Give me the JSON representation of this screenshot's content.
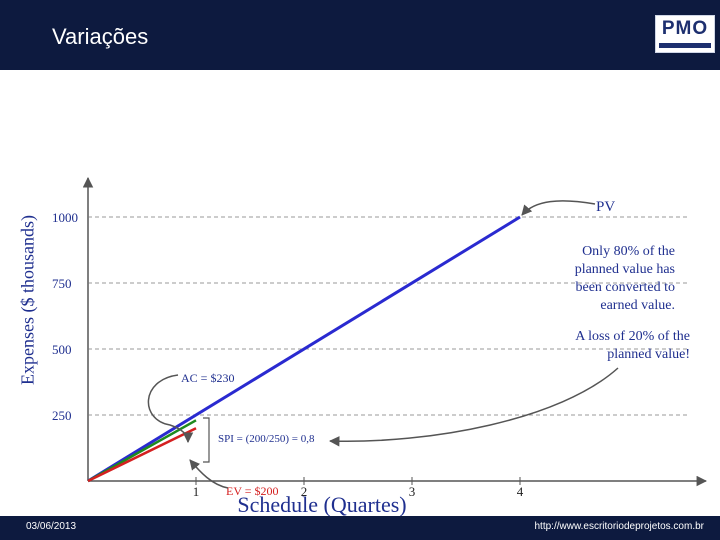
{
  "header": {
    "title": "Variações",
    "logo_text": "PMO"
  },
  "footer": {
    "date": "03/06/2013",
    "url": "http://www.escritoriodeprojetos.com.br"
  },
  "colors": {
    "header_bg": "#0d1a3f",
    "pv": "#2a2ad0",
    "ev": "#d42020",
    "ac": "#1e8a1e",
    "text": "#1f2f8f"
  },
  "chart_data": {
    "type": "line",
    "xlabel": "Schedule (Quartes)",
    "ylabel": "Expenses ($ thousands)",
    "x_ticks": [
      "1",
      "2",
      "3",
      "4"
    ],
    "y_ticks": [
      250,
      500,
      750,
      1000
    ],
    "xlim": [
      0,
      4.1
    ],
    "ylim": [
      0,
      1150
    ],
    "grid": true,
    "series": [
      {
        "name": "PV",
        "color": "#2a2ad0",
        "x": [
          0,
          4
        ],
        "y": [
          0,
          1000
        ]
      },
      {
        "name": "AC = $230",
        "color": "#1e8a1e",
        "x": [
          0,
          1
        ],
        "y": [
          0,
          230
        ]
      },
      {
        "name": "EV = $200",
        "color": "#d42020",
        "x": [
          0,
          1
        ],
        "y": [
          0,
          200
        ]
      }
    ],
    "annotations": {
      "pv": "PV",
      "ac": "AC = $230",
      "ev": "EV = $200",
      "spi": "SPI = (200/250) = 0,8",
      "note1": [
        "Only 80% of the",
        "planned value has",
        "been converted to",
        "earned value."
      ],
      "note2": [
        "A loss of 20% of the",
        "planned value!"
      ]
    }
  }
}
